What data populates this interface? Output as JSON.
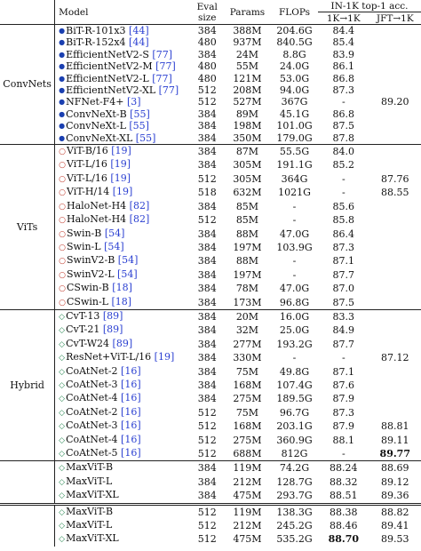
{
  "header": {
    "model": "Model",
    "eval_size": "Eval size",
    "params": "Params",
    "flops": "FLOPs",
    "acc_group": "IN-1K top-1 acc.",
    "acc_1k": "1K→1K",
    "acc_jft": "JFT→1K"
  },
  "groups": [
    {
      "name": "ConvNets",
      "marker": "●",
      "rows": [
        {
          "model": "BiT-R-101x3",
          "ref": "[44]",
          "eval": "384",
          "params": "388M",
          "flops": "204.6G",
          "acc1k": "84.4",
          "jft": ""
        },
        {
          "model": "BiT-R-152x4",
          "ref": "[44]",
          "eval": "480",
          "params": "937M",
          "flops": "840.5G",
          "acc1k": "85.4",
          "jft": ""
        },
        {
          "model": "EfficientNetV2-S",
          "ref": "[77]",
          "eval": "384",
          "params": "24M",
          "flops": "8.8G",
          "acc1k": "83.9",
          "jft": ""
        },
        {
          "model": "EfficientNetV2-M",
          "ref": "[77]",
          "eval": "480",
          "params": "55M",
          "flops": "24.0G",
          "acc1k": "86.1",
          "jft": ""
        },
        {
          "model": "EfficientNetV2-L",
          "ref": "[77]",
          "eval": "480",
          "params": "121M",
          "flops": "53.0G",
          "acc1k": "86.8",
          "jft": ""
        },
        {
          "model": "EfficientNetV2-XL",
          "ref": "[77]",
          "eval": "512",
          "params": "208M",
          "flops": "94.0G",
          "acc1k": "87.3",
          "jft": ""
        },
        {
          "model": "NFNet-F4+",
          "ref": "[3]",
          "eval": "512",
          "params": "527M",
          "flops": "367G",
          "acc1k": "-",
          "jft": "89.20"
        },
        {
          "model": "ConvNeXt-B",
          "ref": "[55]",
          "eval": "384",
          "params": "89M",
          "flops": "45.1G",
          "acc1k": "86.8",
          "jft": ""
        },
        {
          "model": "ConvNeXt-L",
          "ref": "[55]",
          "eval": "384",
          "params": "198M",
          "flops": "101.0G",
          "acc1k": "87.5",
          "jft": ""
        },
        {
          "model": "ConvNeXt-XL",
          "ref": "[55]",
          "eval": "384",
          "params": "350M",
          "flops": "179.0G",
          "acc1k": "87.8",
          "jft": ""
        }
      ]
    },
    {
      "name": "ViTs",
      "marker": "○",
      "rows": [
        {
          "model": "ViT-B/16",
          "ref": "[19]",
          "eval": "384",
          "params": "87M",
          "flops": "55.5G",
          "acc1k": "84.0",
          "jft": ""
        },
        {
          "model": "ViT-L/16",
          "ref": "[19]",
          "eval": "384",
          "params": "305M",
          "flops": "191.1G",
          "acc1k": "85.2",
          "jft": ""
        },
        {
          "model": "ViT-L/16",
          "ref": "[19]",
          "eval": "512",
          "params": "305M",
          "flops": "364G",
          "acc1k": "-",
          "jft": "87.76"
        },
        {
          "model": "ViT-H/14",
          "ref": "[19]",
          "eval": "518",
          "params": "632M",
          "flops": "1021G",
          "acc1k": "-",
          "jft": "88.55"
        },
        {
          "model": "HaloNet-H4",
          "ref": "[82]",
          "eval": "384",
          "params": "85M",
          "flops": "-",
          "acc1k": "85.6",
          "jft": ""
        },
        {
          "model": "HaloNet-H4",
          "ref": "[82]",
          "eval": "512",
          "params": "85M",
          "flops": "-",
          "acc1k": "85.8",
          "jft": ""
        },
        {
          "model": "Swin-B",
          "ref": "[54]",
          "eval": "384",
          "params": "88M",
          "flops": "47.0G",
          "acc1k": "86.4",
          "jft": ""
        },
        {
          "model": "Swin-L",
          "ref": "[54]",
          "eval": "384",
          "params": "197M",
          "flops": "103.9G",
          "acc1k": "87.3",
          "jft": ""
        },
        {
          "model": "SwinV2-B",
          "ref": "[54]",
          "eval": "384",
          "params": "88M",
          "flops": "-",
          "acc1k": "87.1",
          "jft": ""
        },
        {
          "model": "SwinV2-L",
          "ref": "[54]",
          "eval": "384",
          "params": "197M",
          "flops": "-",
          "acc1k": "87.7",
          "jft": ""
        },
        {
          "model": "CSwin-B",
          "ref": "[18]",
          "eval": "384",
          "params": "78M",
          "flops": "47.0G",
          "acc1k": "87.0",
          "jft": ""
        },
        {
          "model": "CSwin-L",
          "ref": "[18]",
          "eval": "384",
          "params": "173M",
          "flops": "96.8G",
          "acc1k": "87.5",
          "jft": ""
        }
      ]
    },
    {
      "name": "Hybrid",
      "marker": "◇",
      "rows": [
        {
          "model": "CvT-13",
          "ref": "[89]",
          "eval": "384",
          "params": "20M",
          "flops": "16.0G",
          "acc1k": "83.3",
          "jft": ""
        },
        {
          "model": "CvT-21",
          "ref": "[89]",
          "eval": "384",
          "params": "32M",
          "flops": "25.0G",
          "acc1k": "84.9",
          "jft": ""
        },
        {
          "model": "CvT-W24",
          "ref": "[89]",
          "eval": "384",
          "params": "277M",
          "flops": "193.2G",
          "acc1k": "87.7",
          "jft": ""
        },
        {
          "model": "ResNet+ViT-L/16",
          "ref": "[19]",
          "eval": "384",
          "params": "330M",
          "flops": "-",
          "acc1k": "-",
          "jft": "87.12"
        },
        {
          "model": "CoAtNet-2",
          "ref": "[16]",
          "eval": "384",
          "params": "75M",
          "flops": "49.8G",
          "acc1k": "87.1",
          "jft": ""
        },
        {
          "model": "CoAtNet-3",
          "ref": "[16]",
          "eval": "384",
          "params": "168M",
          "flops": "107.4G",
          "acc1k": "87.6",
          "jft": ""
        },
        {
          "model": "CoAtNet-4",
          "ref": "[16]",
          "eval": "384",
          "params": "275M",
          "flops": "189.5G",
          "acc1k": "87.9",
          "jft": ""
        },
        {
          "model": "CoAtNet-2",
          "ref": "[16]",
          "eval": "512",
          "params": "75M",
          "flops": "96.7G",
          "acc1k": "87.3",
          "jft": ""
        },
        {
          "model": "CoAtNet-3",
          "ref": "[16]",
          "eval": "512",
          "params": "168M",
          "flops": "203.1G",
          "acc1k": "87.9",
          "jft": "88.81"
        },
        {
          "model": "CoAtNet-4",
          "ref": "[16]",
          "eval": "512",
          "params": "275M",
          "flops": "360.9G",
          "acc1k": "88.1",
          "jft": "89.11"
        },
        {
          "model": "CoAtNet-5",
          "ref": "[16]",
          "eval": "512",
          "params": "688M",
          "flops": "812G",
          "acc1k": "-",
          "jft": "89.77",
          "jft_bold": true
        }
      ]
    },
    {
      "name": "",
      "marker": "◇",
      "rows": [
        {
          "model": "MaxViT-B",
          "ref": "",
          "eval": "384",
          "params": "119M",
          "flops": "74.2G",
          "acc1k": "88.24",
          "jft": "88.69"
        },
        {
          "model": "MaxViT-L",
          "ref": "",
          "eval": "384",
          "params": "212M",
          "flops": "128.7G",
          "acc1k": "88.32",
          "jft": "89.12"
        },
        {
          "model": "MaxViT-XL",
          "ref": "",
          "eval": "384",
          "params": "475M",
          "flops": "293.7G",
          "acc1k": "88.51",
          "jft": "89.36"
        }
      ]
    },
    {
      "name": "",
      "marker": "◇",
      "rows": [
        {
          "model": "MaxViT-B",
          "ref": "",
          "eval": "512",
          "params": "119M",
          "flops": "138.3G",
          "acc1k": "88.38",
          "jft": "88.82"
        },
        {
          "model": "MaxViT-L",
          "ref": "",
          "eval": "512",
          "params": "212M",
          "flops": "245.2G",
          "acc1k": "88.46",
          "jft": "89.41"
        },
        {
          "model": "MaxViT-XL",
          "ref": "",
          "eval": "512",
          "params": "475M",
          "flops": "535.2G",
          "acc1k": "88.70",
          "jft": "89.53",
          "acc_bold": true
        }
      ]
    }
  ]
}
